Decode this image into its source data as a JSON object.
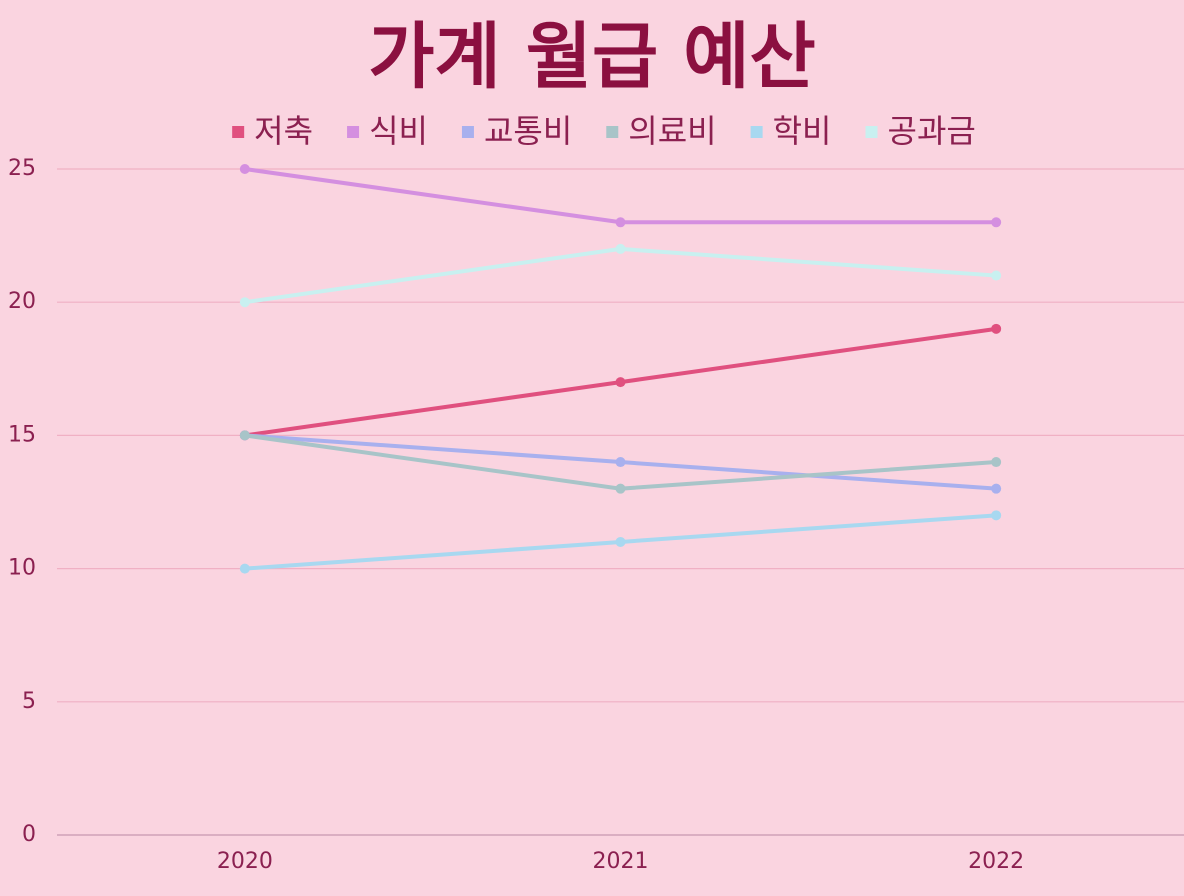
{
  "chart_data": {
    "type": "line",
    "title": "가계 월급 예산",
    "categories": [
      "2020",
      "2021",
      "2022"
    ],
    "series": [
      {
        "name": "저축",
        "color": "#e0507f",
        "values": [
          15,
          17,
          19
        ]
      },
      {
        "name": "식비",
        "color": "#d48fe0",
        "values": [
          25,
          23,
          23
        ]
      },
      {
        "name": "교통비",
        "color": "#a8b0ee",
        "values": [
          15,
          14,
          13
        ]
      },
      {
        "name": "의료비",
        "color": "#a8c4c8",
        "values": [
          15,
          13,
          14
        ]
      },
      {
        "name": "학비",
        "color": "#a8d8f0",
        "values": [
          10,
          11,
          12
        ]
      },
      {
        "name": "공과금",
        "color": "#c8f0f0",
        "values": [
          20,
          22,
          21
        ]
      }
    ],
    "ylim": [
      0,
      25
    ],
    "yticks": [
      0,
      5,
      10,
      15,
      20,
      25
    ],
    "grid": true,
    "legend": "top"
  }
}
